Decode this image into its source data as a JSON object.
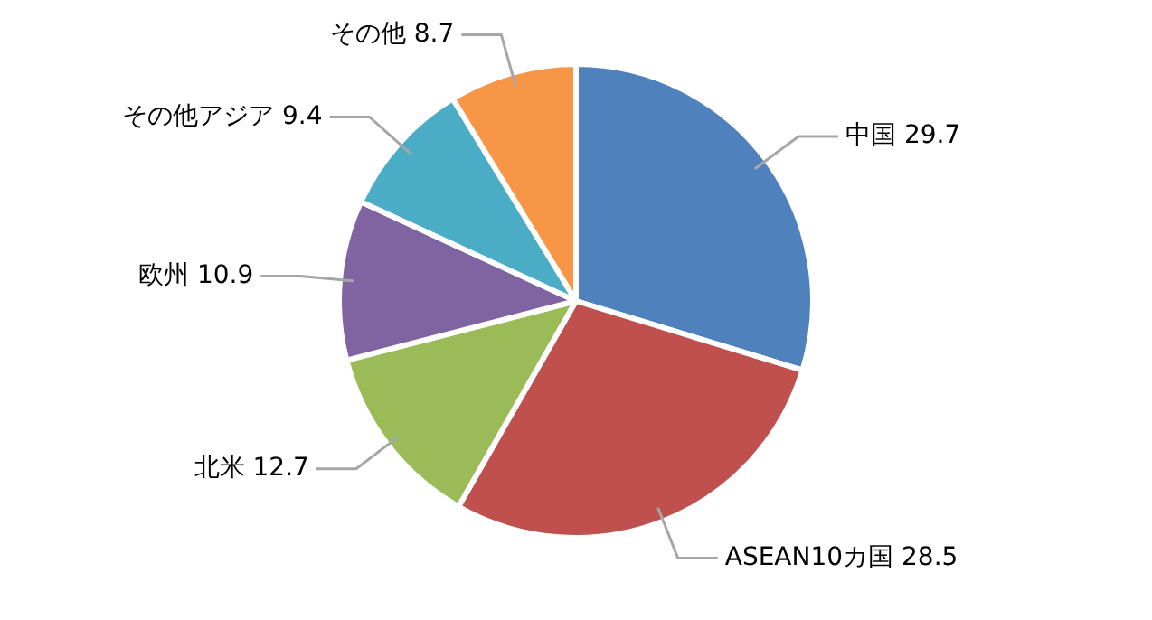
{
  "chart_data": {
    "type": "pie",
    "categories": [
      "中国",
      "ASEAN10カ国",
      "北米",
      "欧州",
      "その他アジア",
      "その他"
    ],
    "values": [
      29.7,
      28.5,
      12.7,
      10.9,
      9.4,
      8.7
    ],
    "colors": [
      "#4f81bd",
      "#c0504d",
      "#9bbb59",
      "#8064a2",
      "#4bacc6",
      "#f79646"
    ],
    "data_labels": true,
    "legend": false
  }
}
